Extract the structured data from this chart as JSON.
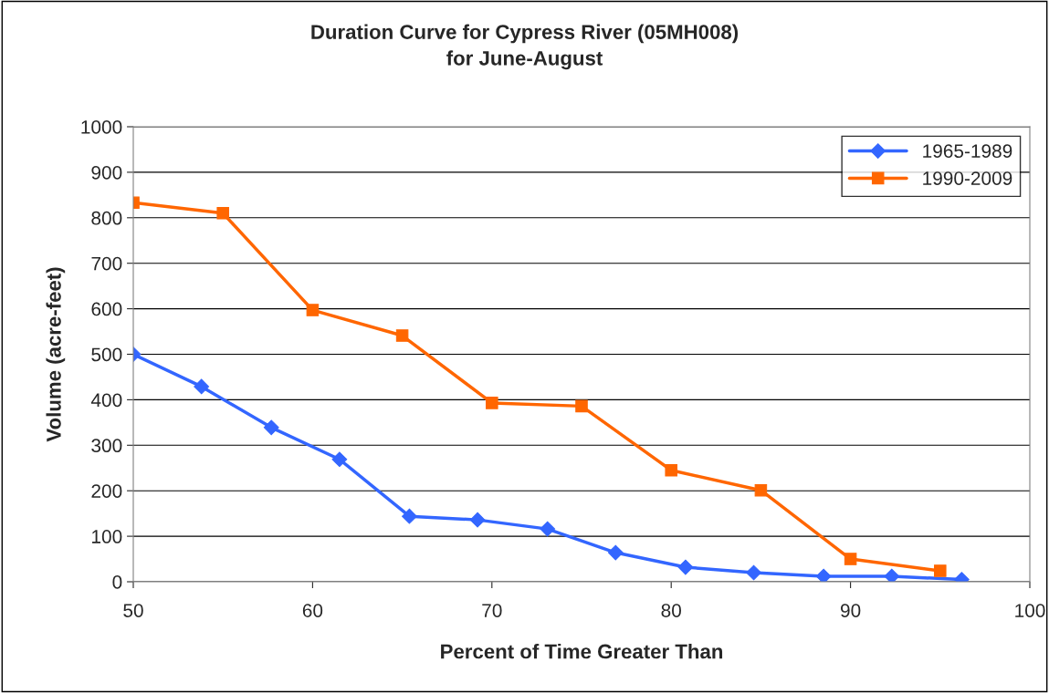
{
  "chart_data": {
    "type": "line",
    "title": "Duration Curve for Cypress River (05MH008)\nfor June-August",
    "xlabel": "Percent of Time Greater Than",
    "ylabel": "Volume (acre-feet)",
    "xlim": [
      50,
      100
    ],
    "xticks": [
      50,
      60,
      70,
      80,
      90,
      100
    ],
    "ylim": [
      0,
      1000
    ],
    "yticks": [
      0,
      100,
      200,
      300,
      400,
      500,
      600,
      700,
      800,
      900,
      1000
    ],
    "grid": "y",
    "legend": "top right",
    "series": [
      {
        "name": "1965-1989",
        "color": "#3366ff",
        "marker": "diamond",
        "x": [
          50,
          53.8,
          57.7,
          61.5,
          65.4,
          69.2,
          73.1,
          76.9,
          80.8,
          84.6,
          88.5,
          92.3,
          96.2
        ],
        "values": [
          500,
          429,
          339,
          269,
          144,
          136,
          116,
          64,
          32,
          20,
          12,
          12,
          5
        ]
      },
      {
        "name": "1990-2009",
        "color": "#ff6600",
        "marker": "square",
        "x": [
          50,
          55,
          60,
          65,
          70,
          75,
          80,
          85,
          90,
          95
        ],
        "values": [
          833,
          810,
          597,
          541,
          393,
          386,
          245,
          201,
          50,
          24
        ]
      }
    ]
  }
}
